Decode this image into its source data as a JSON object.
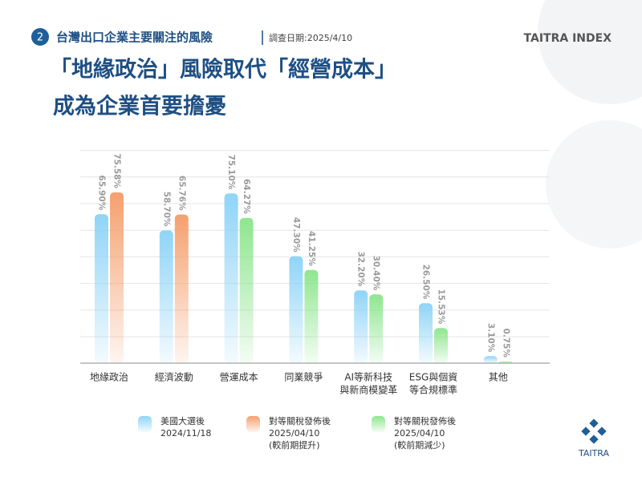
{
  "header": {
    "number": "2",
    "subtitle": "台灣出口企業主要關注的風險",
    "survey_date": "調查日期:2025/4/10",
    "brand": "TAITRA INDEX",
    "logo_text": "TAITRA"
  },
  "chart_data": {
    "type": "bar",
    "title": [
      "「地緣政治」風險取代「經營成本」",
      "成為企業首要擔憂"
    ],
    "categories": [
      [
        "地緣政治"
      ],
      [
        "經濟波動"
      ],
      [
        "營運成本"
      ],
      [
        "同業競爭"
      ],
      [
        "AI等新科技",
        "與新商模變革"
      ],
      [
        "ESG與個資",
        "等合規標準"
      ],
      [
        "其他"
      ]
    ],
    "series": [
      {
        "name": [
          "美國大選後",
          "2024/11/18"
        ],
        "color": "#8fd4f7",
        "values": [
          65.9,
          58.7,
          75.1,
          47.3,
          32.2,
          26.5,
          3.1
        ],
        "value_labels": [
          "65.90%",
          "58.70%",
          "75.10%",
          "47.30%",
          "32.20%",
          "26.50%",
          "3.10%"
        ]
      },
      {
        "name": [
          "對等關稅發佈後",
          "2025/04/10"
        ],
        "colors": [
          "#f5a06e",
          "#f5a06e",
          "#8ee68f",
          "#8ee68f",
          "#8ee68f",
          "#8ee68f",
          "#8ee68f"
        ],
        "values": [
          75.58,
          65.76,
          64.27,
          41.25,
          30.4,
          15.53,
          0.75
        ],
        "value_labels": [
          "75.58%",
          "65.76%",
          "64.27%",
          "41.25%",
          "30.40%",
          "15.53%",
          "0.75%"
        ]
      }
    ],
    "legend": [
      {
        "lines": [
          "美國大選後",
          "2024/11/18"
        ],
        "color": "#8fd4f7"
      },
      {
        "lines": [
          "對等關稅發佈後",
          "2025/04/10",
          "(較前期提升)"
        ],
        "color": "#f5a06e"
      },
      {
        "lines": [
          "對等關稅發佈後",
          "2025/04/10",
          "(較前期減少)"
        ],
        "color": "#8ee68f"
      }
    ],
    "ylim": [
      0,
      80
    ],
    "grid": true
  }
}
